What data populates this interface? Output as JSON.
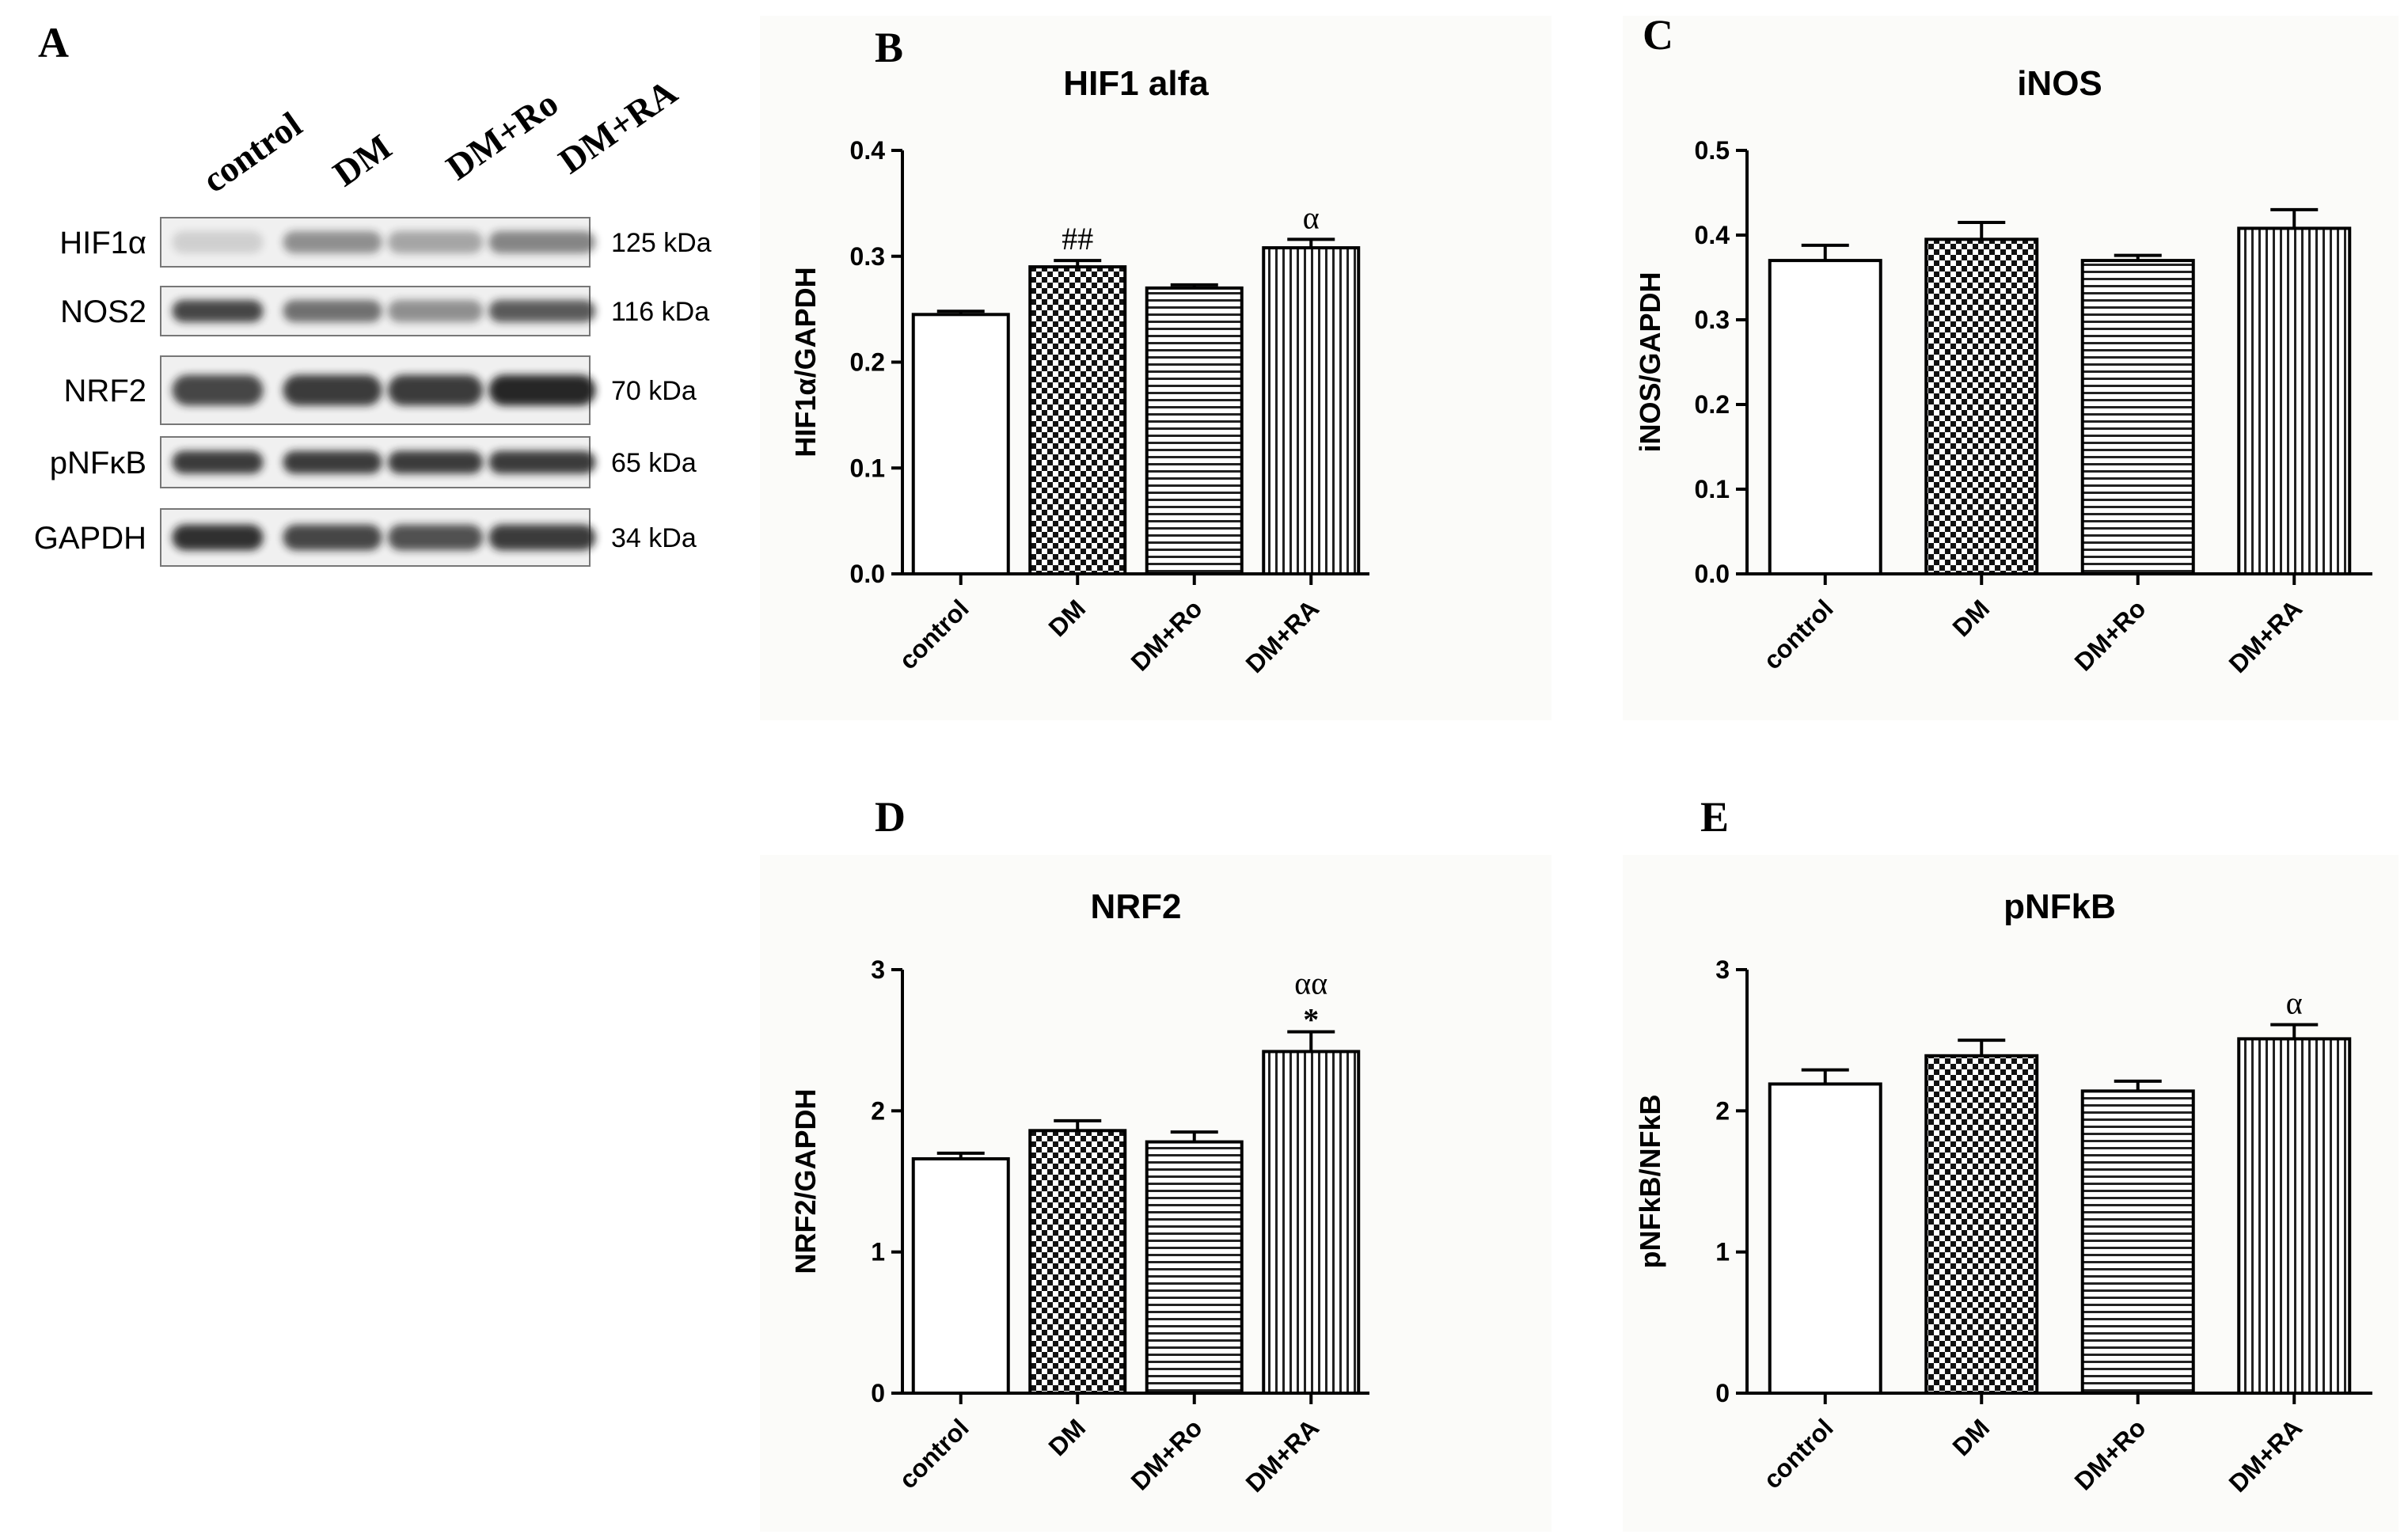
{
  "panels": {
    "A": "A",
    "B": "B",
    "C": "C",
    "D": "D",
    "E": "E"
  },
  "blot": {
    "lanes": [
      "control",
      "DM",
      "DM+Ro",
      "DM+RA"
    ],
    "rows": [
      {
        "protein": "HIF1α",
        "kda": "125 kDa",
        "intensity": [
          0.15,
          0.45,
          0.35,
          0.5
        ]
      },
      {
        "protein": "NOS2",
        "kda": "116 kDa",
        "intensity": [
          0.8,
          0.6,
          0.45,
          0.7
        ]
      },
      {
        "protein": "NRF2",
        "kda": "70 kDa",
        "intensity": [
          0.8,
          0.85,
          0.85,
          0.95
        ]
      },
      {
        "protein": "pNFκB",
        "kda": "65 kDa",
        "intensity": [
          0.85,
          0.85,
          0.85,
          0.85
        ]
      },
      {
        "protein": "GAPDH",
        "kda": "34 kDa",
        "intensity": [
          0.9,
          0.8,
          0.75,
          0.85
        ]
      }
    ]
  },
  "colors": {
    "bar_stroke": "#000000",
    "panel_bg": "#fbfbf9",
    "blot_bg": "#f0f0f0",
    "band": "#1a1a1a"
  },
  "chart_data": [
    {
      "id": "B",
      "type": "bar",
      "title": "HIF1 alfa",
      "ylabel": "HIF1α/GAPDH",
      "xlabel": "",
      "categories": [
        "control",
        "DM",
        "DM+Ro",
        "DM+RA"
      ],
      "values": [
        0.245,
        0.29,
        0.27,
        0.308
      ],
      "errors": [
        0.003,
        0.006,
        0.003,
        0.008
      ],
      "ylim": [
        0,
        0.4
      ],
      "yticks": [
        "0.0",
        "0.1",
        "0.2",
        "0.3",
        "0.4"
      ],
      "patterns": [
        "none",
        "checker",
        "hlines",
        "vlines"
      ],
      "annotations": [
        {
          "category": "DM",
          "lines": [
            "##"
          ]
        },
        {
          "category": "DM+RA",
          "lines": [
            "α"
          ]
        }
      ]
    },
    {
      "id": "C",
      "type": "bar",
      "title": "iNOS",
      "ylabel": "iNOS/GAPDH",
      "xlabel": "",
      "categories": [
        "control",
        "DM",
        "DM+Ro",
        "DM+RA"
      ],
      "values": [
        0.37,
        0.395,
        0.37,
        0.408
      ],
      "errors": [
        0.018,
        0.02,
        0.006,
        0.022
      ],
      "ylim": [
        0,
        0.5
      ],
      "yticks": [
        "0.0",
        "0.1",
        "0.2",
        "0.3",
        "0.4",
        "0.5"
      ],
      "patterns": [
        "none",
        "checker",
        "hlines",
        "vlines"
      ],
      "annotations": []
    },
    {
      "id": "D",
      "type": "bar",
      "title": "NRF2",
      "ylabel": "NRF2/GAPDH",
      "xlabel": "",
      "categories": [
        "control",
        "DM",
        "DM+Ro",
        "DM+RA"
      ],
      "values": [
        1.66,
        1.86,
        1.78,
        2.42
      ],
      "errors": [
        0.04,
        0.07,
        0.07,
        0.14
      ],
      "ylim": [
        0,
        3
      ],
      "yticks": [
        "0",
        "1",
        "2",
        "3"
      ],
      "patterns": [
        "none",
        "checker",
        "hlines",
        "vlines"
      ],
      "annotations": [
        {
          "category": "DM+RA",
          "lines": [
            "αα",
            "*"
          ]
        }
      ]
    },
    {
      "id": "E",
      "type": "bar",
      "title": "pNFkB",
      "ylabel": "pNFkB/NFkB",
      "xlabel": "",
      "categories": [
        "control",
        "DM",
        "DM+Ro",
        "DM+RA"
      ],
      "values": [
        2.19,
        2.39,
        2.14,
        2.51
      ],
      "errors": [
        0.1,
        0.11,
        0.07,
        0.1
      ],
      "ylim": [
        0,
        3
      ],
      "yticks": [
        "0",
        "1",
        "2",
        "3"
      ],
      "patterns": [
        "none",
        "checker",
        "hlines",
        "vlines"
      ],
      "annotations": [
        {
          "category": "DM+RA",
          "lines": [
            "α"
          ]
        }
      ]
    }
  ]
}
